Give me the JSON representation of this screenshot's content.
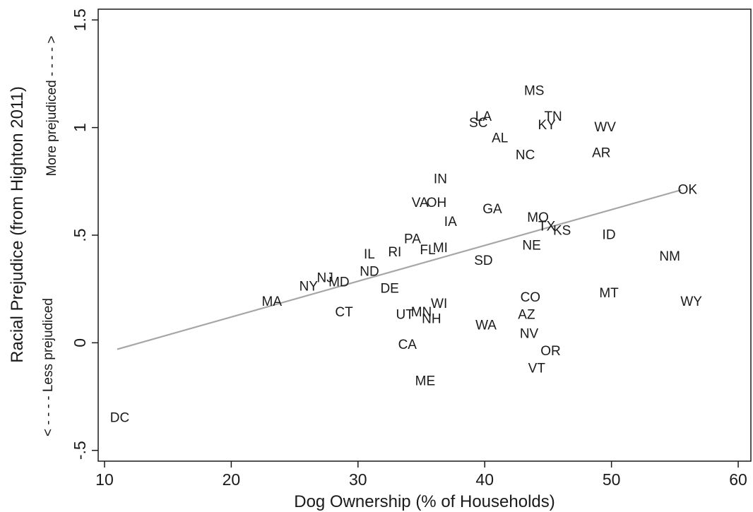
{
  "chart_data": {
    "type": "scatter",
    "xlabel": "Dog Ownership (% of Households)",
    "ylabel": "Racial Prejudice (from Highton 2011)",
    "xlim": [
      9.5,
      61
    ],
    "ylim": [
      -0.55,
      1.55
    ],
    "x_ticks": [
      10,
      20,
      30,
      40,
      50,
      60
    ],
    "x_tick_labels": [
      "10",
      "20",
      "30",
      "40",
      "50",
      "60"
    ],
    "y_ticks": [
      -0.5,
      0,
      0.5,
      1,
      1.5
    ],
    "y_tick_labels": [
      "-.5",
      "0",
      ".5",
      "1",
      "1.5"
    ],
    "y_annotation_high": "More prejudiced - - - - >",
    "y_annotation_low": "< - - - - Less prejudiced",
    "grid": false,
    "fit_line": {
      "x": [
        11,
        55.5
      ],
      "y": [
        -0.03,
        0.71
      ],
      "color": "#a6a6a6"
    },
    "points": [
      {
        "label": "MS",
        "x": 43.9,
        "y": 1.17
      },
      {
        "label": "LA",
        "x": 39.9,
        "y": 1.05
      },
      {
        "label": "SC",
        "x": 39.5,
        "y": 1.02
      },
      {
        "label": "TN",
        "x": 45.4,
        "y": 1.05
      },
      {
        "label": "KY",
        "x": 44.9,
        "y": 1.01
      },
      {
        "label": "WV",
        "x": 49.5,
        "y": 1.0
      },
      {
        "label": "AL",
        "x": 41.2,
        "y": 0.95
      },
      {
        "label": "NC",
        "x": 43.2,
        "y": 0.87
      },
      {
        "label": "AR",
        "x": 49.2,
        "y": 0.88
      },
      {
        "label": "IN",
        "x": 36.5,
        "y": 0.76
      },
      {
        "label": "OK",
        "x": 56.0,
        "y": 0.71
      },
      {
        "label": "VA",
        "x": 34.9,
        "y": 0.65
      },
      {
        "label": "OH",
        "x": 36.2,
        "y": 0.65
      },
      {
        "label": "GA",
        "x": 40.6,
        "y": 0.62
      },
      {
        "label": "IA",
        "x": 37.3,
        "y": 0.56
      },
      {
        "label": "MO",
        "x": 44.2,
        "y": 0.58
      },
      {
        "label": "TX",
        "x": 44.9,
        "y": 0.54
      },
      {
        "label": "KS",
        "x": 46.1,
        "y": 0.52
      },
      {
        "label": "ID",
        "x": 49.8,
        "y": 0.5
      },
      {
        "label": "PA",
        "x": 34.3,
        "y": 0.48
      },
      {
        "label": "NE",
        "x": 43.7,
        "y": 0.45
      },
      {
        "label": "IL",
        "x": 30.9,
        "y": 0.41
      },
      {
        "label": "RI",
        "x": 32.9,
        "y": 0.42
      },
      {
        "label": "FL",
        "x": 35.5,
        "y": 0.43
      },
      {
        "label": "MI",
        "x": 36.5,
        "y": 0.44
      },
      {
        "label": "NM",
        "x": 54.6,
        "y": 0.4
      },
      {
        "label": "SD",
        "x": 39.9,
        "y": 0.38
      },
      {
        "label": "NJ",
        "x": 27.4,
        "y": 0.3
      },
      {
        "label": "ND",
        "x": 30.9,
        "y": 0.33
      },
      {
        "label": "MD",
        "x": 28.5,
        "y": 0.28
      },
      {
        "label": "NY",
        "x": 26.1,
        "y": 0.26
      },
      {
        "label": "DE",
        "x": 32.5,
        "y": 0.25
      },
      {
        "label": "MA",
        "x": 23.2,
        "y": 0.19
      },
      {
        "label": "MT",
        "x": 49.8,
        "y": 0.23
      },
      {
        "label": "CO",
        "x": 43.6,
        "y": 0.21
      },
      {
        "label": "WY",
        "x": 56.3,
        "y": 0.19
      },
      {
        "label": "WI",
        "x": 36.4,
        "y": 0.18
      },
      {
        "label": "CT",
        "x": 28.9,
        "y": 0.14
      },
      {
        "label": "UT",
        "x": 33.7,
        "y": 0.13
      },
      {
        "label": "MN",
        "x": 35.0,
        "y": 0.14
      },
      {
        "label": "NH",
        "x": 35.8,
        "y": 0.11
      },
      {
        "label": "AZ",
        "x": 43.3,
        "y": 0.13
      },
      {
        "label": "WA",
        "x": 40.1,
        "y": 0.08
      },
      {
        "label": "NV",
        "x": 43.5,
        "y": 0.04
      },
      {
        "label": "CA",
        "x": 33.9,
        "y": -0.01
      },
      {
        "label": "OR",
        "x": 45.2,
        "y": -0.04
      },
      {
        "label": "VT",
        "x": 44.1,
        "y": -0.12
      },
      {
        "label": "ME",
        "x": 35.3,
        "y": -0.18
      },
      {
        "label": "DC",
        "x": 11.2,
        "y": -0.35
      }
    ]
  }
}
